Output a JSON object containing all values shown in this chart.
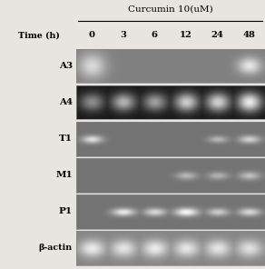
{
  "title": "Curcumin 10(uM)",
  "time_label": "Time (h)",
  "time_points": [
    "0",
    "3",
    "6",
    "12",
    "24",
    "48"
  ],
  "row_labels": [
    "A3",
    "A4",
    "T1",
    "M1",
    "P1",
    "β-actin"
  ],
  "figure_bg": "#e8e4e0",
  "rows": {
    "A3": {
      "bg_val": 0.5,
      "bands": [
        {
          "x": 0,
          "bright": 0.85,
          "wx": 0.8,
          "wy": 0.9
        },
        {
          "x": 1,
          "bright": 0.2,
          "wx": 0.55,
          "wy": 0.22
        },
        {
          "x": 2,
          "bright": 0.15,
          "wx": 0.5,
          "wy": 0.2
        },
        {
          "x": 3,
          "bright": 0.35,
          "wx": 0.58,
          "wy": 0.25
        },
        {
          "x": 4,
          "bright": 0.5,
          "wx": 0.6,
          "wy": 0.28
        },
        {
          "x": 5,
          "bright": 0.9,
          "wx": 0.68,
          "wy": 0.6
        }
      ]
    },
    "A4": {
      "bg_val": 0.1,
      "bands": [
        {
          "x": 0,
          "bright": 0.55,
          "wx": 0.72,
          "wy": 0.65
        },
        {
          "x": 1,
          "bright": 0.7,
          "wx": 0.72,
          "wy": 0.65
        },
        {
          "x": 2,
          "bright": 0.62,
          "wx": 0.72,
          "wy": 0.65
        },
        {
          "x": 3,
          "bright": 0.8,
          "wx": 0.72,
          "wy": 0.68
        },
        {
          "x": 4,
          "bright": 0.82,
          "wx": 0.72,
          "wy": 0.68
        },
        {
          "x": 5,
          "bright": 0.92,
          "wx": 0.72,
          "wy": 0.7
        }
      ]
    },
    "T1": {
      "bg_val": 0.45,
      "bands": [
        {
          "x": 0,
          "bright": 0.88,
          "wx": 0.6,
          "wy": 0.28
        },
        {
          "x": 1,
          "bright": 0.35,
          "wx": 0.52,
          "wy": 0.22
        },
        {
          "x": 2,
          "bright": 0.42,
          "wx": 0.55,
          "wy": 0.22
        },
        {
          "x": 3,
          "bright": 0.42,
          "wx": 0.55,
          "wy": 0.22
        },
        {
          "x": 4,
          "bright": 0.72,
          "wx": 0.58,
          "wy": 0.25
        },
        {
          "x": 5,
          "bright": 0.82,
          "wx": 0.62,
          "wy": 0.28
        }
      ]
    },
    "M1": {
      "bg_val": 0.45,
      "bands": [
        {
          "x": 0,
          "bright": 0.0,
          "wx": 0.5,
          "wy": 0.15
        },
        {
          "x": 1,
          "bright": 0.0,
          "wx": 0.5,
          "wy": 0.15
        },
        {
          "x": 2,
          "bright": 0.28,
          "wx": 0.55,
          "wy": 0.22
        },
        {
          "x": 3,
          "bright": 0.72,
          "wx": 0.62,
          "wy": 0.28
        },
        {
          "x": 4,
          "bright": 0.7,
          "wx": 0.62,
          "wy": 0.28
        },
        {
          "x": 5,
          "bright": 0.75,
          "wx": 0.62,
          "wy": 0.3
        }
      ]
    },
    "P1": {
      "bg_val": 0.45,
      "bands": [
        {
          "x": 0,
          "bright": 0.32,
          "wx": 0.52,
          "wy": 0.22
        },
        {
          "x": 1,
          "bright": 0.92,
          "wx": 0.68,
          "wy": 0.28
        },
        {
          "x": 2,
          "bright": 0.85,
          "wx": 0.65,
          "wy": 0.28
        },
        {
          "x": 3,
          "bright": 0.98,
          "wx": 0.7,
          "wy": 0.3
        },
        {
          "x": 4,
          "bright": 0.8,
          "wx": 0.65,
          "wy": 0.28
        },
        {
          "x": 5,
          "bright": 0.85,
          "wx": 0.65,
          "wy": 0.28
        }
      ]
    },
    "β-actin": {
      "bg_val": 0.52,
      "bands": [
        {
          "x": 0,
          "bright": 0.92,
          "wx": 0.76,
          "wy": 0.62
        },
        {
          "x": 1,
          "bright": 0.9,
          "wx": 0.76,
          "wy": 0.62
        },
        {
          "x": 2,
          "bright": 0.92,
          "wx": 0.76,
          "wy": 0.62
        },
        {
          "x": 3,
          "bright": 0.9,
          "wx": 0.76,
          "wy": 0.62
        },
        {
          "x": 4,
          "bright": 0.9,
          "wx": 0.76,
          "wy": 0.62
        },
        {
          "x": 5,
          "bright": 0.88,
          "wx": 0.76,
          "wy": 0.62
        }
      ]
    }
  }
}
